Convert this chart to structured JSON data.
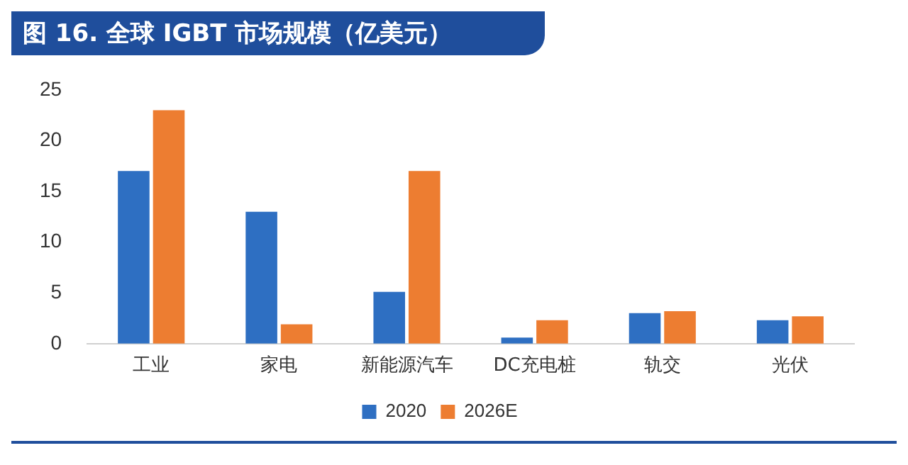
{
  "chart_data": {
    "type": "bar",
    "title": "图 16. 全球 IGBT 市场规模（亿美元）",
    "categories": [
      "工业",
      "家电",
      "新能源汽车",
      "DC充电桩",
      "轨交",
      "光伏"
    ],
    "series": [
      {
        "name": "2020",
        "color": "#2e6fc2",
        "values": [
          17,
          13,
          5.1,
          0.6,
          3,
          2.3
        ]
      },
      {
        "name": "2026E",
        "color": "#ed7d31",
        "values": [
          23,
          1.9,
          17,
          2.3,
          3.2,
          2.7
        ]
      }
    ],
    "ylim": [
      0,
      25
    ],
    "yticks": [
      0,
      5,
      10,
      15,
      20,
      25
    ],
    "grid": false,
    "legend": "bottom"
  }
}
